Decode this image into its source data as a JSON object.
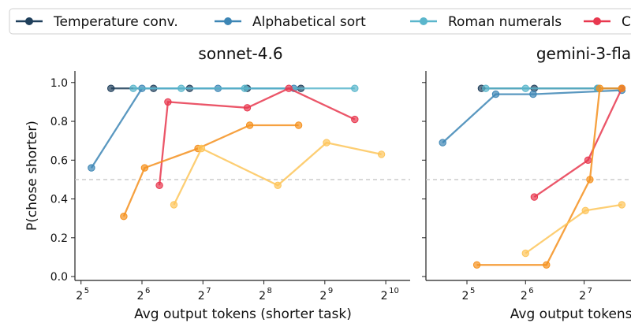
{
  "legend": {
    "items": [
      {
        "label": "Temperature conv.",
        "color": "#1f3f5b"
      },
      {
        "label": "Alphabetical sort",
        "color": "#3d86b5"
      },
      {
        "label": "Roman numerals",
        "color": "#5ab6cc"
      },
      {
        "label": "C",
        "color": "#e8384f"
      }
    ]
  },
  "chart_data": [
    {
      "type": "line",
      "title": "sonnet-4.6",
      "xlabel": "Avg output tokens (shorter task)",
      "ylabel": "P(chose shorter)",
      "x_scale": "log2",
      "xlim_log2": [
        4.9,
        10.4
      ],
      "ylim": [
        -0.02,
        1.06
      ],
      "x_ticks": [
        {
          "exp": "5"
        },
        {
          "exp": "6"
        },
        {
          "exp": "7"
        },
        {
          "exp": "8"
        },
        {
          "exp": "9"
        },
        {
          "exp": "10"
        }
      ],
      "y_ticks": [
        "0.0",
        "0.2",
        "0.4",
        "0.6",
        "0.8",
        "1.0"
      ],
      "reference_line": 0.5,
      "series": [
        {
          "color": "#1f3f5b",
          "x": [
            45,
            73,
            110,
            212,
            390
          ],
          "y": [
            0.97,
            0.97,
            0.97,
            0.97,
            0.97
          ]
        },
        {
          "color": "#3d86b5",
          "x": [
            36,
            64,
            152,
            360
          ],
          "y": [
            0.56,
            0.97,
            0.97,
            0.97
          ]
        },
        {
          "color": "#5ab6cc",
          "x": [
            58,
            100,
            206,
            720
          ],
          "y": [
            0.97,
            0.97,
            0.97,
            0.97
          ]
        },
        {
          "color": "#e8384f",
          "x": [
            78,
            86,
            212,
            340,
            720
          ],
          "y": [
            0.47,
            0.9,
            0.87,
            0.97,
            0.81
          ]
        },
        {
          "color": "#f5911e",
          "x": [
            52,
            66,
            121,
            218,
            380
          ],
          "y": [
            0.31,
            0.56,
            0.66,
            0.78,
            0.78
          ]
        },
        {
          "color": "#fdc55a",
          "x": [
            92,
            126,
            300,
            522,
            975
          ],
          "y": [
            0.37,
            0.66,
            0.47,
            0.69,
            0.63
          ]
        }
      ]
    },
    {
      "type": "line",
      "title": "gemini-3-fla",
      "xlabel": "Avg output tokens (sh",
      "ylabel": "",
      "x_scale": "log2",
      "xlim_log2": [
        4.3,
        7.8
      ],
      "ylim": [
        -0.02,
        1.06
      ],
      "x_ticks": [
        {
          "exp": "5"
        },
        {
          "exp": "6"
        },
        {
          "exp": "7"
        }
      ],
      "y_ticks": [],
      "reference_line": 0.5,
      "series": [
        {
          "color": "#1f3f5b",
          "x": [
            38,
            71,
            150,
            200
          ],
          "y": [
            0.97,
            0.97,
            0.97,
            0.97
          ]
        },
        {
          "color": "#3d86b5",
          "x": [
            24,
            45,
            70,
            200
          ],
          "y": [
            0.69,
            0.94,
            0.94,
            0.96
          ]
        },
        {
          "color": "#5ab6cc",
          "x": [
            40,
            64,
            150,
            200
          ],
          "y": [
            0.97,
            0.97,
            0.97,
            0.97
          ]
        },
        {
          "color": "#e8384f",
          "x": [
            71,
            134,
            200
          ],
          "y": [
            0.41,
            0.6,
            0.97
          ]
        },
        {
          "color": "#f5911e",
          "x": [
            36,
            82,
            137,
            154,
            200
          ],
          "y": [
            0.06,
            0.06,
            0.5,
            0.97,
            0.97
          ]
        },
        {
          "color": "#fdc55a",
          "x": [
            64,
            130,
            200
          ],
          "y": [
            0.12,
            0.34,
            0.37
          ]
        }
      ]
    }
  ]
}
